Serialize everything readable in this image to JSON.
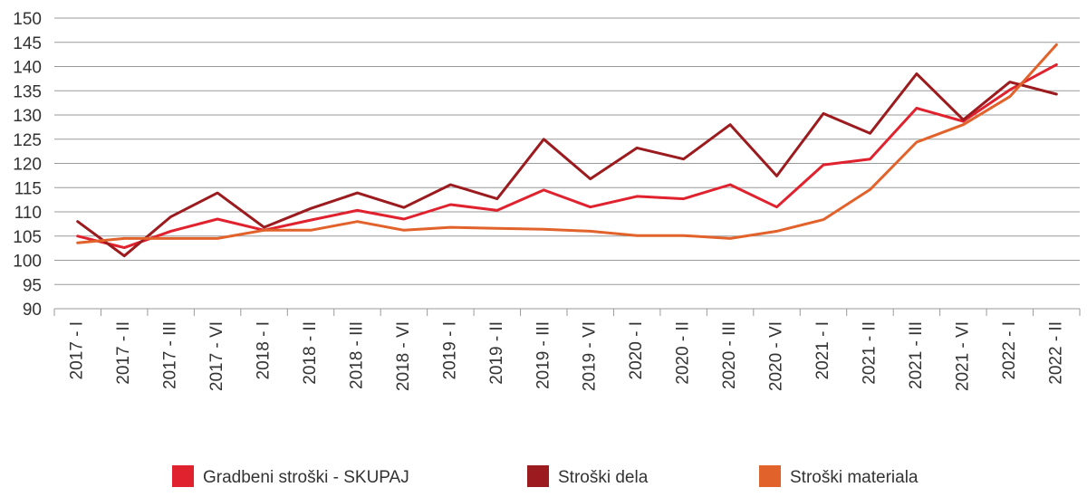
{
  "chart_data": {
    "type": "line",
    "categories": [
      "2017 - I",
      "2017 - II",
      "2017 - III",
      "2017 - VI",
      "2018 - I",
      "2018 - II",
      "2018 - III",
      "2018 - VI",
      "2019 - I",
      "2019 - II",
      "2019 - III",
      "2019 - VI",
      "2020 - I",
      "2020 - II",
      "2020 - III",
      "2020 - VI",
      "2021 - I",
      "2021 - II",
      "2021 - III",
      "2021 - VI",
      "2022 - I",
      "2022 - II"
    ],
    "ylim": [
      90,
      150
    ],
    "yticks": [
      90,
      95,
      100,
      105,
      110,
      115,
      120,
      125,
      130,
      135,
      140,
      145,
      150
    ],
    "grid": true,
    "legend_position": "bottom",
    "series": [
      {
        "name": "Gradbeni stroški - SKUPAJ",
        "color": "#e0222e",
        "values": [
          105.0,
          102.6,
          106.0,
          108.5,
          106.2,
          108.3,
          110.3,
          108.5,
          111.5,
          110.3,
          114.5,
          111.0,
          113.2,
          112.7,
          115.6,
          111.0,
          119.7,
          120.9,
          131.4,
          128.7,
          135.2,
          140.4
        ]
      },
      {
        "name": "Stroški dela",
        "color": "#9b1b1e",
        "values": [
          108.0,
          100.9,
          109.0,
          113.9,
          106.8,
          110.7,
          113.9,
          110.9,
          115.6,
          112.7,
          125.0,
          116.8,
          123.2,
          120.9,
          128.0,
          117.4,
          130.3,
          126.2,
          138.5,
          129.0,
          136.8,
          134.3
        ]
      },
      {
        "name": "Stroški materiala",
        "color": "#e2622b",
        "values": [
          103.6,
          104.5,
          104.5,
          104.5,
          106.2,
          106.2,
          108.0,
          106.2,
          106.8,
          106.6,
          106.4,
          106.0,
          105.1,
          105.1,
          104.5,
          106.0,
          108.4,
          114.6,
          124.4,
          128.0,
          133.8,
          144.5
        ]
      }
    ]
  }
}
